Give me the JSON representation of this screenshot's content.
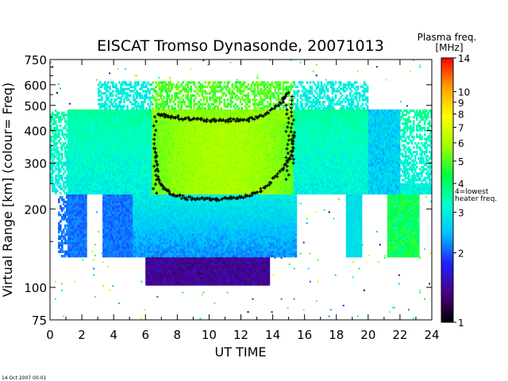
{
  "chart_data": {
    "type": "heatmap",
    "title": "EISCAT Tromso Dynasonde,  20071013",
    "xlabel": "UT TIME",
    "ylabel": "Virtual Range [km]   (colour= Freq)",
    "x_ticks": [
      "0",
      "2",
      "4",
      "6",
      "8",
      "10",
      "12",
      "14",
      "16",
      "18",
      "20",
      "22",
      "24"
    ],
    "y_ticks": [
      "75",
      "100",
      "200",
      "300",
      "400",
      "500",
      "600",
      "750"
    ],
    "y_scale": "log",
    "xlim": [
      0,
      24
    ],
    "ylim": [
      75,
      750
    ],
    "colorbar": {
      "label_line1": "Plasma freq.",
      "label_line2": "[MHz]",
      "ticks": [
        "1",
        "2",
        "3",
        "4",
        "5",
        "6",
        "7",
        "8",
        "9",
        "10",
        "14"
      ],
      "range": [
        1,
        14
      ],
      "annotation_line1": "4=lowest",
      "annotation_line2": "heater freq.",
      "colors": [
        "#000000",
        "#4b0082",
        "#2020ff",
        "#00bfff",
        "#00ffd0",
        "#00ff40",
        "#a0ff00",
        "#ffff00",
        "#ffa000",
        "#ff0000"
      ]
    },
    "traces": [
      {
        "kind": "upper_boundary",
        "points": [
          [
            6.8,
            460
          ],
          [
            7.5,
            455
          ],
          [
            8.5,
            445
          ],
          [
            9.5,
            440
          ],
          [
            10.5,
            435
          ],
          [
            11.5,
            440
          ],
          [
            12.5,
            440
          ],
          [
            13.5,
            460
          ],
          [
            14.5,
            510
          ],
          [
            15,
            560
          ]
        ]
      },
      {
        "kind": "lower_boundary",
        "points": [
          [
            6.6,
            340
          ],
          [
            6.9,
            250
          ],
          [
            7.5,
            230
          ],
          [
            8.5,
            220
          ],
          [
            9.5,
            218
          ],
          [
            10.5,
            218
          ],
          [
            11.5,
            220
          ],
          [
            12.5,
            225
          ],
          [
            13.5,
            240
          ],
          [
            14.5,
            280
          ],
          [
            15.2,
            320
          ],
          [
            15.4,
            400
          ]
        ]
      }
    ]
  },
  "footer": {
    "timestamp": "14 Oct 2007 00:01"
  }
}
